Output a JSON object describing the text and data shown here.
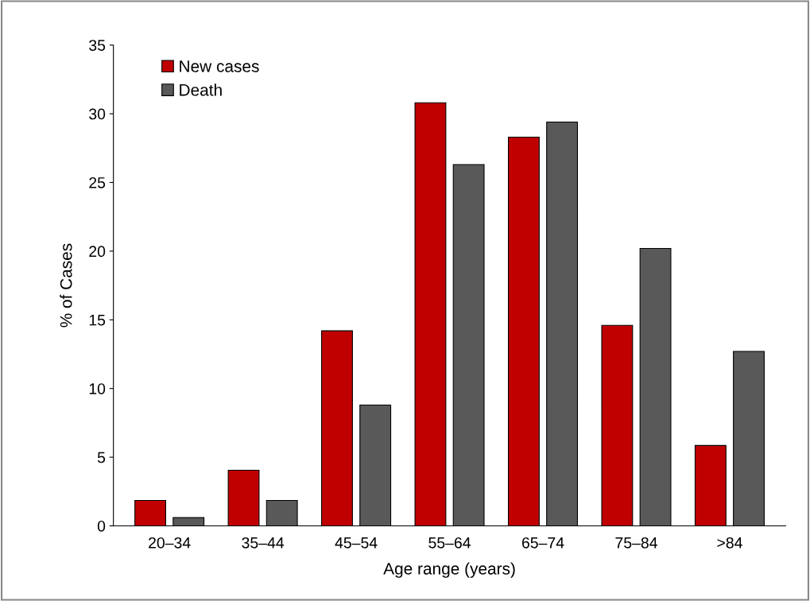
{
  "chart_data": {
    "type": "bar",
    "xlabel": "Age range (years)",
    "ylabel": "% of Cases",
    "categories": [
      "20–34",
      "35–44",
      "45–54",
      "55–64",
      "65–74",
      "75–84",
      ">84"
    ],
    "series": [
      {
        "name": "New cases",
        "color": "#c00000",
        "values": [
          1.85,
          4.05,
          14.2,
          30.8,
          28.3,
          14.6,
          5.85
        ]
      },
      {
        "name": "Death",
        "color": "#595959",
        "values": [
          0.6,
          1.85,
          8.8,
          26.3,
          29.4,
          20.2,
          12.7
        ]
      }
    ],
    "ylim": [
      0,
      35
    ],
    "yticks": [
      0,
      5,
      10,
      15,
      20,
      25,
      30,
      35
    ],
    "grid": false,
    "legend": "top left"
  }
}
